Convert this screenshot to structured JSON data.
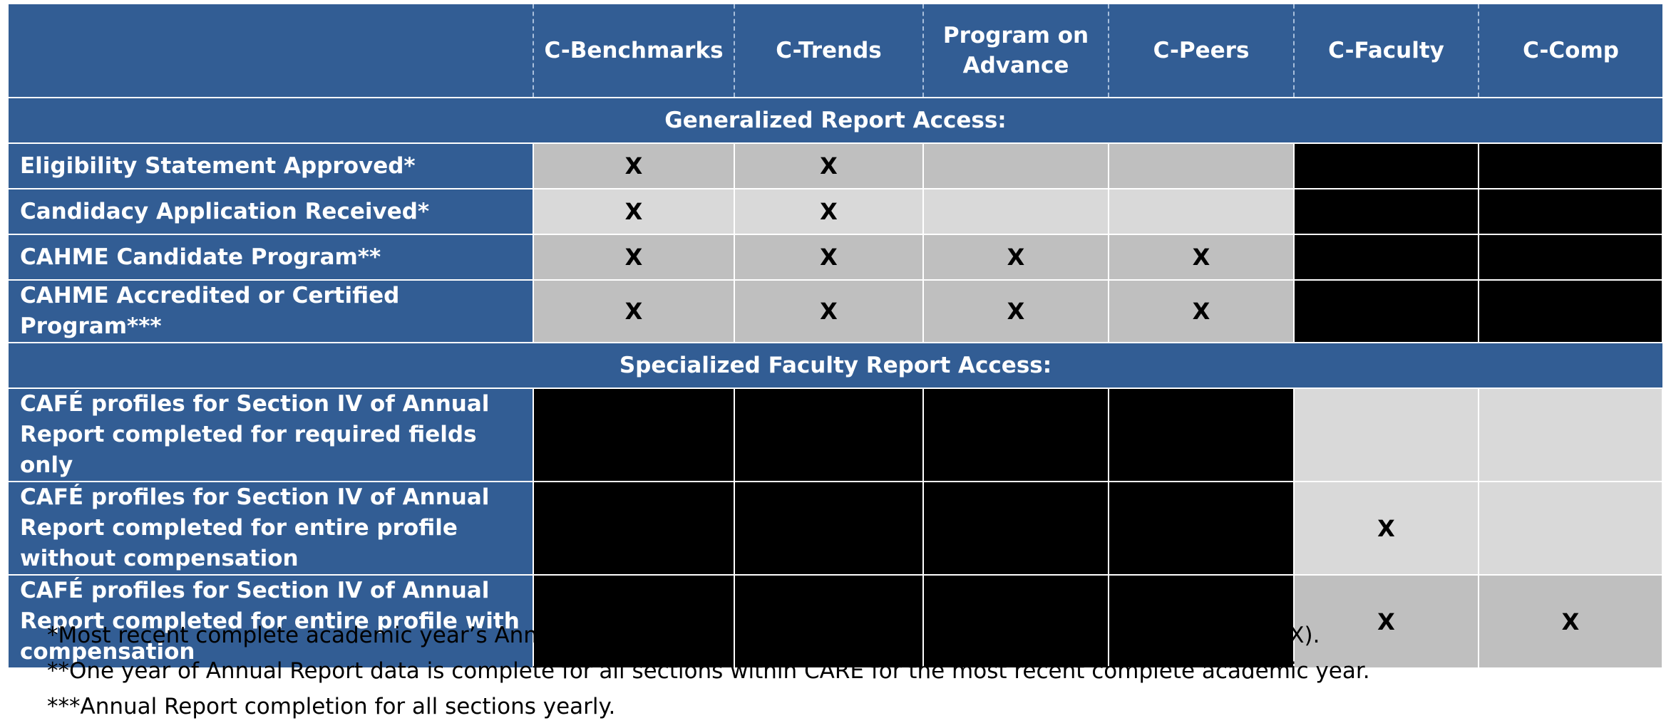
{
  "table": {
    "columns": [
      "C-Benchmarks",
      "C-Trends",
      "Program on Advance",
      "C-Peers",
      "C-Faculty",
      "C-Comp"
    ],
    "sections": [
      {
        "title": "Generalized Report Access:",
        "rows": [
          {
            "label": "Eligibility Statement Approved*",
            "cells": [
              "X",
              "X",
              "",
              "",
              "",
              ""
            ]
          },
          {
            "label": "Candidacy Application Received*",
            "cells": [
              "X",
              "X",
              "",
              "",
              "",
              ""
            ]
          },
          {
            "label": "CAHME Candidate Program**",
            "cells": [
              "X",
              "X",
              "X",
              "X",
              "",
              ""
            ]
          },
          {
            "label": "CAHME Accredited or Certified Program***",
            "cells": [
              "X",
              "X",
              "X",
              "X",
              "",
              ""
            ]
          }
        ]
      },
      {
        "title": "Specialized Faculty Report Access:",
        "rows": [
          {
            "label": "CAFÉ profiles for Section IV of Annual Report completed for required fields only",
            "cells": [
              "",
              "",
              "",
              "",
              "",
              ""
            ]
          },
          {
            "label": "CAFÉ profiles for Section IV of Annual Report completed for entire profile without compensation",
            "cells": [
              "",
              "",
              "",
              "",
              "X",
              ""
            ]
          },
          {
            "label": "CAFÉ profiles for Section IV of Annual Report completed for entire profile with compensation",
            "cells": [
              "",
              "",
              "",
              "",
              "X",
              "X"
            ]
          }
        ]
      }
    ]
  },
  "footnotes": [
    "*Most recent complete academic year’s Annual Report data is complete within CARE (sections I through VI and IX).",
    "**One year of Annual Report data is complete for all sections within CARE for the most recent complete academic year.",
    "***Annual Report completion for all sections yearly."
  ],
  "colors": {
    "header_blue": "#325d94",
    "cell_mid_gray": "#bfbfbf",
    "cell_light_gray": "#d9d9d9",
    "blocked_black": "#000000"
  }
}
